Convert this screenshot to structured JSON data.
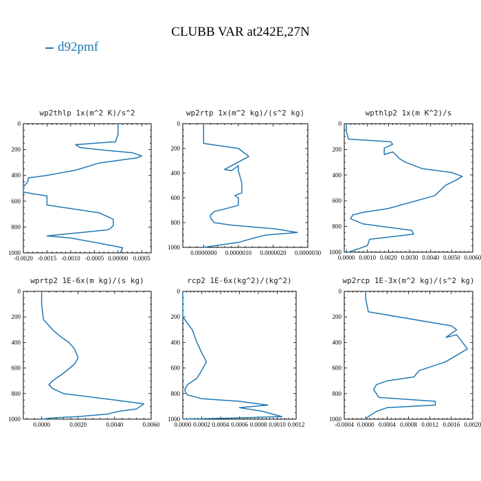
{
  "title": "CLUBB VAR at242E,27N",
  "legend": {
    "label": "d92pmf",
    "color": "#1f77b4"
  },
  "chart_data": [
    {
      "type": "line",
      "title": "wp2thlp  1x(m^2 K)/s^2",
      "xlim": [
        -0.002,
        0.0007
      ],
      "ylim": [
        1000,
        0
      ],
      "xticks": [
        -0.002,
        -0.0015,
        -0.001,
        -0.0005,
        0,
        0.0005
      ],
      "xticklabels": [
        "-0.0020",
        "-0.0015",
        "-0.0010",
        "-0.0005",
        "0.00000",
        "0.0005"
      ],
      "yticks": [
        0,
        200,
        400,
        600,
        800,
        1000
      ],
      "series": [
        {
          "x": [
            0.0,
            0.0,
            -5e-05,
            -0.0009,
            -0.0008,
            -0.0003,
            0.0003,
            0.0005,
            0.0004,
            -0.0004,
            -0.0009,
            -0.0015,
            -0.0019,
            -0.0019,
            -0.002,
            -0.002,
            -0.0015,
            -0.0015,
            -0.0004,
            -0.0001,
            -0.0001,
            -0.0002,
            -0.0007,
            -0.0015,
            -0.001,
            -0.0004,
            0.0001,
            5e-05
          ],
          "y": [
            0,
            80,
            140,
            162,
            185,
            205,
            225,
            250,
            265,
            305,
            360,
            400,
            420,
            445,
            490,
            530,
            560,
            630,
            690,
            740,
            790,
            820,
            840,
            868,
            885,
            925,
            960,
            1000
          ]
        }
      ]
    },
    {
      "type": "line",
      "title": "wp2rtp  1x(m^2 kg)/(s^2 kg)",
      "xlim": [
        -6e-07,
        3e-06
      ],
      "ylim": [
        1000,
        0
      ],
      "xticks": [
        0,
        1e-06,
        2e-06,
        3e-06
      ],
      "xticklabels": [
        "0.0000000",
        "0.0000010",
        "0.0000020",
        "0.0000030"
      ],
      "yticks": [
        0,
        200,
        400,
        600,
        800,
        1000
      ],
      "series": [
        {
          "x": [
            0.0,
            0.0,
            0.0,
            1e-06,
            1.3e-06,
            1e-06,
            8e-07,
            6e-07,
            8e-07,
            1e-06,
            1e-06,
            1.1e-06,
            1.1e-06,
            9e-07,
            1e-06,
            1e-06,
            6e-07,
            3e-07,
            2e-07,
            2e-07,
            3e-07,
            8e-07,
            2.05e-06,
            2.7e-06,
            1.8e-06,
            1.5e-06,
            1e-06,
            0.0
          ],
          "y": [
            0,
            60,
            160,
            200,
            265,
            310,
            340,
            370,
            380,
            340,
            380,
            480,
            560,
            580,
            600,
            660,
            690,
            710,
            740,
            760,
            800,
            820,
            850,
            880,
            900,
            920,
            960,
            1000
          ]
        }
      ]
    },
    {
      "type": "line",
      "title": "wpthlp2  1x(m K^2)/s",
      "xlim": [
        -0.0001,
        0.006
      ],
      "ylim": [
        1000,
        0
      ],
      "xticks": [
        0,
        0.001,
        0.002,
        0.003,
        0.004,
        0.005,
        0.006
      ],
      "xticklabels": [
        "0.0000",
        "0.0010",
        "0.0020",
        "0.0030",
        "0.0040",
        "0.0050",
        "0.0060"
      ],
      "yticks": [
        0,
        200,
        400,
        600,
        800,
        1000
      ],
      "series": [
        {
          "x": [
            0.0,
            0.0,
            0.0001,
            0.0021,
            0.0022,
            0.0018,
            0.0018,
            0.0022,
            0.0024,
            0.0025,
            0.0028,
            0.0036,
            0.005,
            0.0055,
            0.0052,
            0.0047,
            0.0042,
            0.002,
            0.0008,
            0.0003,
            0.0002,
            0.0005,
            0.0008,
            0.0031,
            0.0032,
            0.0011,
            0.001,
            0.0001
          ],
          "y": [
            0,
            60,
            120,
            140,
            160,
            190,
            240,
            220,
            250,
            270,
            300,
            350,
            380,
            410,
            440,
            480,
            560,
            660,
            690,
            710,
            740,
            760,
            780,
            830,
            860,
            900,
            950,
            1000
          ]
        }
      ]
    },
    {
      "type": "line",
      "title": "wprtp2  1E-6x(m kg)/(s kg)",
      "xlim": [
        -0.001,
        0.006
      ],
      "ylim": [
        1000,
        0
      ],
      "xticks": [
        0,
        0.002,
        0.004,
        0.006
      ],
      "xticklabels": [
        "0.0000",
        "0.0020",
        "0.0040",
        "0.0060"
      ],
      "yticks": [
        0,
        200,
        400,
        600,
        800,
        1000
      ],
      "series": [
        {
          "x": [
            0.0,
            0.0,
            0.0001,
            0.0006,
            0.001,
            0.0015,
            0.0018,
            0.002,
            0.0018,
            0.0012,
            0.0006,
            0.0004,
            0.0006,
            0.0012,
            0.004,
            0.0056,
            0.0052,
            0.0042,
            0.0036,
            0.002,
            0.0006,
            0.0
          ],
          "y": [
            0,
            100,
            220,
            300,
            350,
            400,
            450,
            520,
            570,
            640,
            700,
            730,
            760,
            800,
            850,
            880,
            920,
            940,
            960,
            980,
            990,
            1000
          ]
        }
      ]
    },
    {
      "type": "line",
      "title": "rcp2  1E-6x(kg^2)/(kg^2)",
      "xlim": [
        0,
        0.0012
      ],
      "ylim": [
        1000,
        0
      ],
      "xticks": [
        0,
        0.0002,
        0.0004,
        0.0006,
        0.0008,
        0.001,
        0.0012
      ],
      "xticklabels": [
        "0.0000",
        "0.0002",
        "0.0004",
        "0.0006",
        "0.0008",
        "0.0010",
        "0.0012"
      ],
      "yticks": [
        0,
        200,
        400,
        600,
        800,
        1000
      ],
      "series": [
        {
          "x": [
            0.0,
            0.0,
            5e-05,
            0.0001,
            0.00015,
            0.0002,
            0.00025,
            0.0002,
            0.00015,
            5e-05,
            2e-05,
            3e-05,
            5e-05,
            0.0002,
            0.0006,
            0.0008,
            0.0009,
            0.0006,
            0.00085,
            0.00095,
            0.00105,
            0.0005,
            0.0
          ],
          "y": [
            0,
            200,
            250,
            300,
            400,
            480,
            550,
            620,
            680,
            730,
            770,
            790,
            810,
            840,
            860,
            880,
            890,
            910,
            940,
            960,
            980,
            992,
            1000
          ]
        }
      ]
    },
    {
      "type": "line",
      "title": "wp2rcp  1E-3x(m^2 kg)/(s^2 kg)",
      "xlim": [
        -0.0004,
        0.002
      ],
      "ylim": [
        1000,
        0
      ],
      "xticks": [
        -0.0004,
        0,
        0.0004,
        0.0008,
        0.0012,
        0.0016,
        0.002
      ],
      "xticklabels": [
        "-0.0004",
        "0.0000",
        "0.0004",
        "0.0008",
        "0.0012",
        "0.0016",
        "0.0020"
      ],
      "yticks": [
        0,
        200,
        400,
        600,
        800,
        1000
      ],
      "series": [
        {
          "x": [
            0.0,
            0.0,
            5e-05,
            0.0016,
            0.0017,
            0.0016,
            0.0015,
            0.0017,
            0.0019,
            0.0015,
            0.001,
            0.0009,
            0.0004,
            0.0002,
            0.00015,
            0.0002,
            0.00025,
            0.0013,
            0.0013,
            0.0004,
            0.0002,
            5e-05,
            0.0
          ],
          "y": [
            0,
            60,
            160,
            270,
            300,
            330,
            360,
            340,
            450,
            550,
            620,
            670,
            700,
            730,
            770,
            800,
            830,
            860,
            890,
            910,
            940,
            980,
            1000
          ]
        }
      ]
    }
  ]
}
